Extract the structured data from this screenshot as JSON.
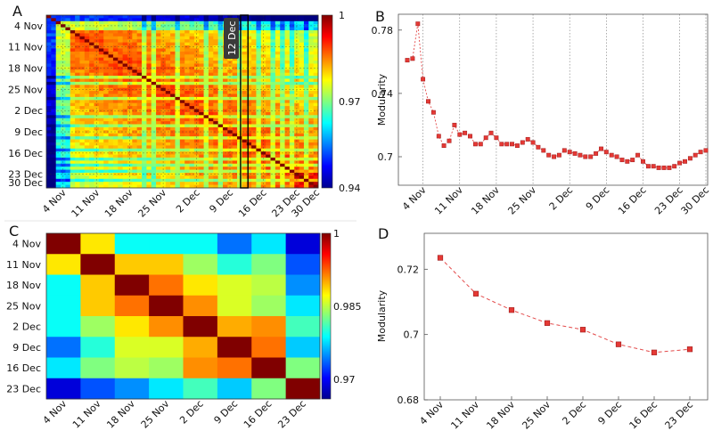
{
  "figure": {
    "panels": [
      {
        "id": "A",
        "letter": "A"
      },
      {
        "id": "B",
        "letter": "B"
      },
      {
        "id": "C",
        "letter": "C"
      },
      {
        "id": "D",
        "letter": "D"
      }
    ]
  },
  "chart_data": [
    {
      "panel": "A",
      "type": "heatmap",
      "title": "",
      "n_days": 57,
      "row_tick_labels": [
        "4 Nov",
        "11 Nov",
        "18 Nov",
        "25 Nov",
        "2 Dec",
        "9 Dec",
        "16 Dec",
        "23 Dec",
        "30 Dec"
      ],
      "row_tick_day_index": [
        3,
        10,
        17,
        24,
        31,
        38,
        45,
        52,
        59
      ],
      "col_tick_labels": [
        "4 Nov",
        "11 Nov",
        "18 Nov",
        "25 Nov",
        "2 Dec",
        "9 Dec",
        "16 Dec",
        "23 Dec",
        "30 Dec"
      ],
      "col_tick_day_index": [
        3,
        10,
        17,
        24,
        31,
        38,
        45,
        52,
        59
      ],
      "highlight_label": "12 Dec",
      "highlight_day_index": 41,
      "colorbar": {
        "min": 0.94,
        "max": 1,
        "ticks": [
          1,
          0.97,
          0.94
        ],
        "tick_labels": [
          "1",
          "0.97",
          "0.94"
        ]
      }
    },
    {
      "panel": "B",
      "type": "line",
      "ylabel": "Modularity",
      "xlabel": "",
      "ylim": [
        0.682,
        0.79
      ],
      "yticks": [
        0.78,
        0.74,
        0.7
      ],
      "ytick_labels": [
        "0.78",
        "0.74",
        "0.7"
      ],
      "xlim": [
        0,
        57
      ],
      "xticks": [
        3,
        10,
        17,
        24,
        31,
        38,
        45,
        52,
        57
      ],
      "xtick_labels": [
        "4 Nov",
        "11 Nov",
        "18 Nov",
        "25 Nov",
        "2 Dec",
        "9 Dec",
        "16 Dec",
        "23 Dec",
        "30 Dec"
      ],
      "grid": "vertical-dotted",
      "x": [
        0,
        1,
        2,
        3,
        4,
        5,
        6,
        7,
        8,
        9,
        10,
        11,
        12,
        13,
        14,
        15,
        16,
        17,
        18,
        19,
        20,
        21,
        22,
        23,
        24,
        25,
        26,
        27,
        28,
        29,
        30,
        31,
        32,
        33,
        34,
        35,
        36,
        37,
        38,
        39,
        40,
        41,
        42,
        43,
        44,
        45,
        46,
        47,
        48,
        49,
        50,
        51,
        52,
        53,
        54,
        55,
        56,
        57
      ],
      "values": [
        0.761,
        0.762,
        0.784,
        0.749,
        0.735,
        0.728,
        0.713,
        0.707,
        0.71,
        0.72,
        0.714,
        0.715,
        0.713,
        0.708,
        0.708,
        0.712,
        0.715,
        0.712,
        0.708,
        0.708,
        0.708,
        0.707,
        0.709,
        0.711,
        0.709,
        0.706,
        0.704,
        0.701,
        0.7,
        0.701,
        0.704,
        0.703,
        0.702,
        0.701,
        0.7,
        0.7,
        0.702,
        0.705,
        0.703,
        0.701,
        0.7,
        0.698,
        0.697,
        0.698,
        0.701,
        0.697,
        0.694,
        0.694,
        0.693,
        0.693,
        0.693,
        0.694,
        0.696,
        0.697,
        0.699,
        0.701,
        0.703,
        0.704
      ]
    },
    {
      "panel": "C",
      "type": "heatmap",
      "categories": [
        "4 Nov",
        "11 Nov",
        "18 Nov",
        "25 Nov",
        "2 Dec",
        "9 Dec",
        "16 Dec",
        "23 Dec"
      ],
      "values": [
        [
          1.0,
          0.988,
          0.979,
          0.979,
          0.979,
          0.974,
          0.978,
          0.969
        ],
        [
          0.988,
          1.0,
          0.989,
          0.989,
          0.984,
          0.98,
          0.983,
          0.973
        ],
        [
          0.979,
          0.989,
          1.0,
          0.992,
          0.988,
          0.986,
          0.985,
          0.975
        ],
        [
          0.979,
          0.989,
          0.992,
          1.0,
          0.991,
          0.986,
          0.984,
          0.978
        ],
        [
          0.979,
          0.984,
          0.988,
          0.991,
          1.0,
          0.99,
          0.991,
          0.981
        ],
        [
          0.974,
          0.98,
          0.986,
          0.986,
          0.99,
          1.0,
          0.992,
          0.977
        ],
        [
          0.978,
          0.983,
          0.985,
          0.984,
          0.991,
          0.992,
          1.0,
          0.983
        ],
        [
          0.969,
          0.973,
          0.975,
          0.978,
          0.981,
          0.977,
          0.983,
          1.0
        ]
      ],
      "colorbar": {
        "min": 0.966,
        "max": 1,
        "ticks": [
          1,
          0.985,
          0.97
        ],
        "tick_labels": [
          "1",
          "0.985",
          "0.97"
        ]
      }
    },
    {
      "panel": "D",
      "type": "line",
      "ylabel": "Modularity",
      "xlabel": "",
      "categories": [
        "4 Nov",
        "11 Nov",
        "18 Nov",
        "25 Nov",
        "2 Dec",
        "9 Dec",
        "16 Dec",
        "23 Dec"
      ],
      "values": [
        0.7235,
        0.7125,
        0.7075,
        0.7035,
        0.7015,
        0.697,
        0.6945,
        0.6955
      ],
      "ylim": [
        0.68,
        0.731
      ],
      "yticks": [
        0.72,
        0.7,
        0.68
      ],
      "ytick_labels": [
        "0.72",
        "0.7",
        "0.68"
      ]
    }
  ]
}
